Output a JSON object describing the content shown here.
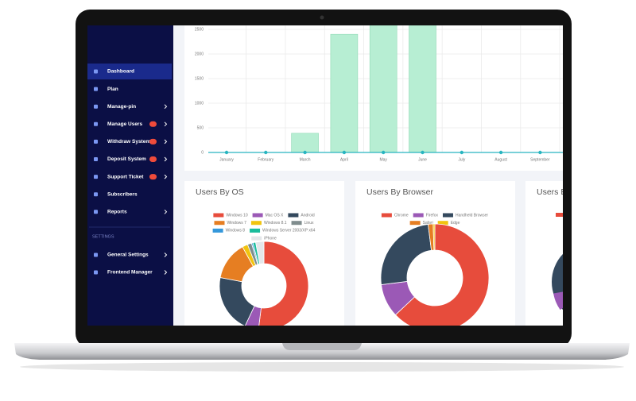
{
  "sidebar": {
    "items": [
      {
        "label": "Dashboard",
        "active": true
      },
      {
        "label": "Plan"
      },
      {
        "label": "Manage-pin",
        "arrow": true
      },
      {
        "label": "Manage Users",
        "arrow": true,
        "badge": true
      },
      {
        "label": "Withdraw System",
        "arrow": true,
        "badge": true
      },
      {
        "label": "Deposit System",
        "arrow": true,
        "badge": true
      },
      {
        "label": "Support Ticket",
        "arrow": true,
        "badge": true
      },
      {
        "label": "Subscribers"
      },
      {
        "label": "Reports",
        "arrow": true
      }
    ],
    "settings_heading": "SETTINGS",
    "settings_items": [
      {
        "label": "General Settings",
        "arrow": true
      },
      {
        "label": "Frontend Manager",
        "arrow": true
      }
    ]
  },
  "chart_data": [
    {
      "type": "bar",
      "categories": [
        "January",
        "February",
        "March",
        "April",
        "May",
        "June",
        "July",
        "August",
        "September"
      ],
      "series": [
        {
          "type": "bar",
          "color": "#b7eed3",
          "values": [
            0,
            0,
            390,
            2400,
            2600,
            2600,
            0,
            0,
            0
          ]
        },
        {
          "type": "line",
          "color": "#28b5c0",
          "values": [
            0,
            0,
            0,
            0,
            0,
            0,
            0,
            0,
            0
          ]
        }
      ],
      "ylim": [
        0,
        2500
      ],
      "yticks": [
        0,
        500,
        1000,
        1500,
        2000,
        2500
      ],
      "grid": true
    },
    {
      "type": "pie",
      "title": "Users By OS",
      "categories": [
        "Windows 10",
        "Mac OS X",
        "Android",
        "Windows 7",
        "Windows 8.1",
        "Linux",
        "Windows 8",
        "Windows Server 2003/XP x64",
        "iPhone"
      ],
      "values": [
        52,
        5,
        21,
        14,
        2,
        1.5,
        0.5,
        1,
        3
      ],
      "colors": [
        "#e74c3c",
        "#9b59b6",
        "#34495e",
        "#e67e22",
        "#f1c40f",
        "#7f8c8d",
        "#3498db",
        "#1abc9c",
        "#e4e7ea"
      ]
    },
    {
      "type": "pie",
      "title": "Users By Browser",
      "categories": [
        "Chrome",
        "Firefox",
        "Handheld Browser",
        "Safari",
        "Edge"
      ],
      "values": [
        63,
        10,
        25,
        1.5,
        0.5
      ],
      "colors": [
        "#e74c3c",
        "#9b59b6",
        "#34495e",
        "#e67e22",
        "#f1c40f"
      ]
    }
  ],
  "partial_card_title": "Users B"
}
